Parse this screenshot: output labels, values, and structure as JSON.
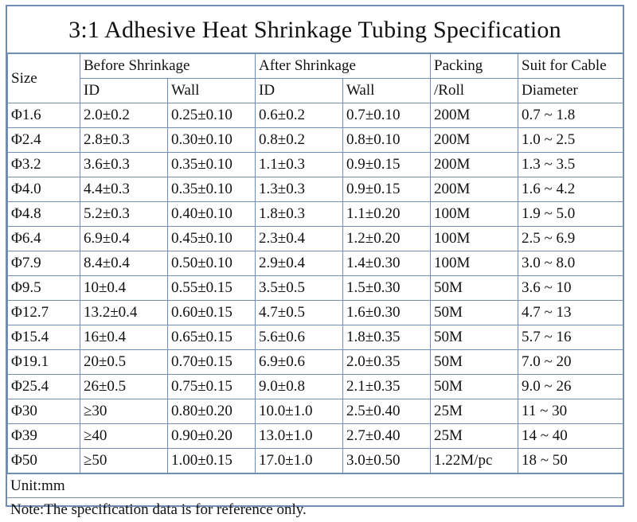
{
  "title": "3:1 Adhesive Heat Shrinkage Tubing Specification",
  "headers": {
    "size": "Size",
    "before": "Before Shrinkage",
    "after": "After Shrinkage",
    "packing_1": "Packing",
    "packing_2": "/Roll",
    "suit_1": "Suit for Cable",
    "suit_2": "Diameter",
    "before_id": "ID",
    "before_wall": "Wall",
    "after_id": "ID",
    "after_wall": "Wall"
  },
  "rows": [
    [
      "Φ1.6",
      "2.0±0.2",
      "0.25±0.10",
      "0.6±0.2",
      "0.7±0.10",
      "200M",
      "0.7 ~ 1.8"
    ],
    [
      "Φ2.4",
      "2.8±0.3",
      "0.30±0.10",
      "0.8±0.2",
      "0.8±0.10",
      "200M",
      "1.0 ~ 2.5"
    ],
    [
      "Φ3.2",
      "3.6±0.3",
      "0.35±0.10",
      "1.1±0.3",
      "0.9±0.15",
      "200M",
      "1.3 ~ 3.5"
    ],
    [
      "Φ4.0",
      "4.4±0.3",
      "0.35±0.10",
      "1.3±0.3",
      "0.9±0.15",
      "200M",
      "1.6 ~ 4.2"
    ],
    [
      "Φ4.8",
      "5.2±0.3",
      "0.40±0.10",
      "1.8±0.3",
      "1.1±0.20",
      "100M",
      "1.9 ~ 5.0"
    ],
    [
      "Φ6.4",
      "6.9±0.4",
      "0.45±0.10",
      "2.3±0.4",
      "1.2±0.20",
      "100M",
      "2.5 ~ 6.9"
    ],
    [
      "Φ7.9",
      "8.4±0.4",
      "0.50±0.10",
      "2.9±0.4",
      "1.4±0.30",
      "100M",
      "3.0 ~ 8.0"
    ],
    [
      "Φ9.5",
      "10±0.4",
      "0.55±0.15",
      "3.5±0.5",
      "1.5±0.30",
      "50M",
      "3.6 ~ 10"
    ],
    [
      "Φ12.7",
      "13.2±0.4",
      "0.60±0.15",
      "4.7±0.5",
      "1.6±0.30",
      "50M",
      "4.7 ~ 13"
    ],
    [
      "Φ15.4",
      "16±0.4",
      "0.65±0.15",
      "5.6±0.6",
      "1.8±0.35",
      "50M",
      "5.7 ~ 16"
    ],
    [
      "Φ19.1",
      "20±0.5",
      "0.70±0.15",
      "6.9±0.6",
      "2.0±0.35",
      "50M",
      "7.0 ~ 20"
    ],
    [
      "Φ25.4",
      "26±0.5",
      "0.75±0.15",
      "9.0±0.8",
      "2.1±0.35",
      "50M",
      "9.0 ~ 26"
    ],
    [
      "Φ30",
      "≥30",
      "0.80±0.20",
      "10.0±1.0",
      "2.5±0.40",
      "25M",
      "11 ~ 30"
    ],
    [
      "Φ39",
      "≥40",
      "0.90±0.20",
      "13.0±1.0",
      "2.7±0.40",
      "25M",
      "14 ~ 40"
    ],
    [
      "Φ50",
      "≥50",
      "1.00±0.15",
      "17.0±1.0",
      "3.0±0.50",
      "1.22M/pc",
      "18 ~ 50"
    ]
  ],
  "unit": "Unit:mm",
  "note": "Note:The specification data is for reference only.",
  "colors": {
    "border": "#6f8db5",
    "text": "#111111"
  }
}
